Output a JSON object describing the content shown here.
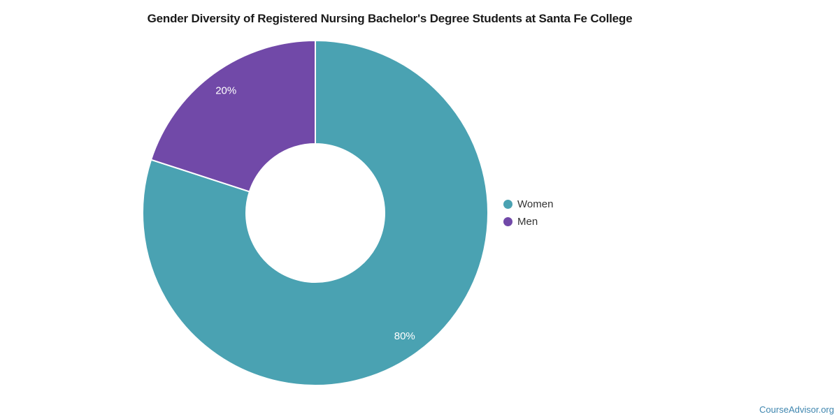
{
  "chart_data": {
    "type": "pie",
    "donut": true,
    "title": "Gender Diversity of Registered Nursing Bachelor's Degree Students at Santa Fe College",
    "series": [
      {
        "name": "Women",
        "value": 80,
        "label": "80%",
        "color": "#4AA2B2"
      },
      {
        "name": "Men",
        "value": 20,
        "label": "20%",
        "color": "#7149A8"
      }
    ],
    "start_angle_deg": 0,
    "direction": "clockwise",
    "inner_radius_ratio": 0.4,
    "slice_label_color": "#ffffff",
    "slice_border_color": "#ffffff",
    "legend_position": "right",
    "legend_text_color": "#333333",
    "title_color": "#1a1a1a"
  },
  "watermark": {
    "text": "CourseAdvisor.org",
    "color": "#3F86AF"
  }
}
